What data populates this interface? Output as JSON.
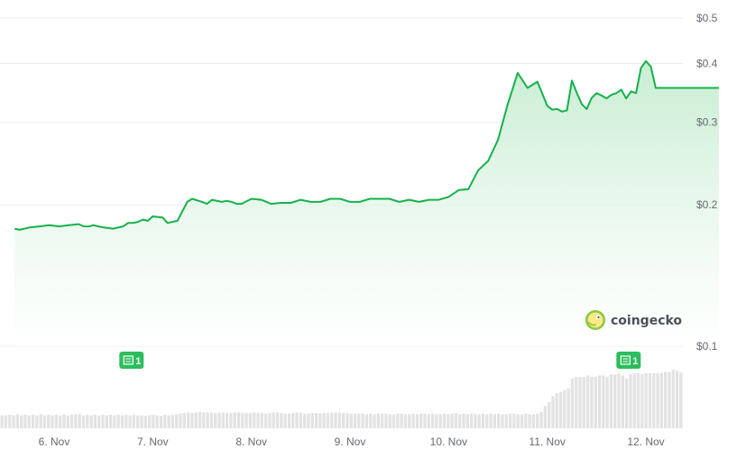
{
  "watermark": {
    "text": "coingecko"
  },
  "colors": {
    "line": "#16b14b",
    "area_top": "#c5ecd0",
    "area_bottom": "#ffffff",
    "grid": "#ececec",
    "volume": "#e3e3e3",
    "badge": "#2dbd5c",
    "text": "#666a73"
  },
  "chart_data": {
    "type": "line",
    "title": "",
    "xlabel": "",
    "ylabel": "",
    "y_scale": "log",
    "ylim": [
      0.1,
      0.5
    ],
    "y_ticks": [
      {
        "value": 0.5,
        "label": "$0.5"
      },
      {
        "value": 0.4,
        "label": "$0.4"
      },
      {
        "value": 0.3,
        "label": "$0.3"
      },
      {
        "value": 0.2,
        "label": "$0.2"
      },
      {
        "value": 0.1,
        "label": "$0.1"
      }
    ],
    "x_range": [
      5.6,
      12.9
    ],
    "x_ticks": [
      {
        "value": 6,
        "label": "6. Nov"
      },
      {
        "value": 7,
        "label": "7. Nov"
      },
      {
        "value": 8,
        "label": "8. Nov"
      },
      {
        "value": 9,
        "label": "9. Nov"
      },
      {
        "value": 10,
        "label": "10. Nov"
      },
      {
        "value": 11,
        "label": "11. Nov"
      },
      {
        "value": 12,
        "label": "12. Nov"
      }
    ],
    "grid": true,
    "series": [
      {
        "x": [
          5.6,
          5.65,
          5.75,
          5.85,
          5.95,
          6.05,
          6.15,
          6.25,
          6.3,
          6.35,
          6.4,
          6.45,
          6.5,
          6.6,
          6.7,
          6.75,
          6.8,
          6.85,
          6.9,
          6.95,
          7.0,
          7.1,
          7.15,
          7.25,
          7.35,
          7.4,
          7.5,
          7.55,
          7.6,
          7.7,
          7.75,
          7.8,
          7.85,
          7.9,
          8.0,
          8.1,
          8.2,
          8.3,
          8.4,
          8.5,
          8.6,
          8.7,
          8.8,
          8.9,
          9.0,
          9.1,
          9.2,
          9.3,
          9.4,
          9.5,
          9.6,
          9.7,
          9.8,
          9.9,
          10.0,
          10.1,
          10.2,
          10.3,
          10.4,
          10.5,
          10.6,
          10.7,
          10.8,
          10.9,
          11.0,
          11.05,
          11.1,
          11.15,
          11.2,
          11.25,
          11.3,
          11.35,
          11.4,
          11.45,
          11.5,
          11.55,
          11.6,
          11.65,
          11.7,
          11.75,
          11.8,
          11.85,
          11.9,
          11.95,
          12.0,
          12.05,
          12.1,
          12.15,
          12.2,
          12.25,
          12.3,
          12.35,
          12.4,
          12.45,
          12.5,
          12.55,
          12.6,
          12.65,
          12.7,
          12.74
        ],
        "y": [
          0.178,
          0.177,
          0.179,
          0.18,
          0.181,
          0.18,
          0.181,
          0.182,
          0.18,
          0.18,
          0.181,
          0.18,
          0.179,
          0.178,
          0.18,
          0.183,
          0.183,
          0.184,
          0.186,
          0.185,
          0.189,
          0.188,
          0.183,
          0.185,
          0.203,
          0.206,
          0.203,
          0.201,
          0.205,
          0.203,
          0.204,
          0.203,
          0.201,
          0.201,
          0.206,
          0.205,
          0.201,
          0.202,
          0.202,
          0.205,
          0.203,
          0.203,
          0.206,
          0.206,
          0.203,
          0.203,
          0.206,
          0.206,
          0.206,
          0.203,
          0.205,
          0.203,
          0.205,
          0.205,
          0.208,
          0.215,
          0.216,
          0.237,
          0.248,
          0.275,
          0.328,
          0.382,
          0.355,
          0.366,
          0.325,
          0.319,
          0.32,
          0.316,
          0.318,
          0.368,
          0.346,
          0.328,
          0.32,
          0.338,
          0.346,
          0.342,
          0.337,
          0.343,
          0.346,
          0.352,
          0.337,
          0.349,
          0.346,
          0.391,
          0.405,
          0.394,
          0.355,
          0.355,
          0.355,
          0.355,
          0.355,
          0.355,
          0.355,
          0.355,
          0.355,
          0.355,
          0.355,
          0.355,
          0.355,
          0.355
        ]
      }
    ],
    "annotations": [
      {
        "x": 6.78,
        "label": "1"
      },
      {
        "x": 11.82,
        "label": "1"
      }
    ],
    "volume_relative": [
      0.22,
      0.22,
      0.23,
      0.22,
      0.24,
      0.22,
      0.23,
      0.22,
      0.23,
      0.22,
      0.24,
      0.22,
      0.23,
      0.22,
      0.23,
      0.22,
      0.23,
      0.22,
      0.23,
      0.24,
      0.24,
      0.22,
      0.23,
      0.22,
      0.23,
      0.22,
      0.23,
      0.22,
      0.23,
      0.22,
      0.23,
      0.22,
      0.23,
      0.22,
      0.23,
      0.22,
      0.22,
      0.21,
      0.22,
      0.23,
      0.22,
      0.21,
      0.23,
      0.22,
      0.23,
      0.24,
      0.25,
      0.26,
      0.27,
      0.26,
      0.27,
      0.28,
      0.27,
      0.27,
      0.27,
      0.26,
      0.27,
      0.27,
      0.26,
      0.26,
      0.27,
      0.27,
      0.26,
      0.26,
      0.26,
      0.27,
      0.26,
      0.26,
      0.25,
      0.26,
      0.27,
      0.27,
      0.26,
      0.25,
      0.25,
      0.26,
      0.27,
      0.26,
      0.25,
      0.25,
      0.26,
      0.26,
      0.25,
      0.26,
      0.26,
      0.27,
      0.27,
      0.27,
      0.26,
      0.26,
      0.25,
      0.25,
      0.25,
      0.25,
      0.24,
      0.25,
      0.24,
      0.25,
      0.25,
      0.25,
      0.24,
      0.24,
      0.25,
      0.25,
      0.24,
      0.24,
      0.25,
      0.24,
      0.25,
      0.25,
      0.24,
      0.25,
      0.24,
      0.24,
      0.25,
      0.24,
      0.25,
      0.26,
      0.24,
      0.25,
      0.24,
      0.25,
      0.24,
      0.24,
      0.25,
      0.24,
      0.25,
      0.24,
      0.25,
      0.24,
      0.24,
      0.25,
      0.25,
      0.24,
      0.24,
      0.25,
      0.24,
      0.24,
      0.25,
      0.28,
      0.38,
      0.45,
      0.55,
      0.6,
      0.62,
      0.65,
      0.68,
      0.85,
      0.88,
      0.88,
      0.88,
      0.9,
      0.88,
      0.88,
      0.9,
      0.9,
      0.88,
      0.92,
      0.92,
      0.94,
      0.9,
      0.85,
      0.92,
      0.94,
      0.94,
      0.92,
      0.94,
      0.94,
      0.94,
      0.94,
      0.94,
      0.96,
      0.96,
      1.0,
      0.98,
      0.95
    ]
  }
}
